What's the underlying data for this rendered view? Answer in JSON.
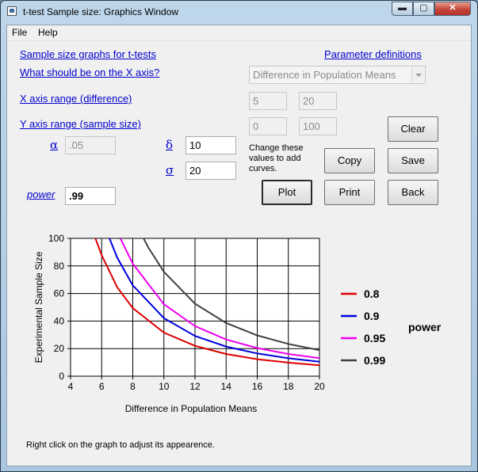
{
  "window": {
    "title": "t-test Sample size:  Graphics Window",
    "min_glyph": "▬",
    "max_glyph": "▢",
    "close_glyph": "✕"
  },
  "menu": {
    "items": [
      "File",
      "Help"
    ]
  },
  "links": {
    "sample_size_graphs": "Sample size graphs for t-tests",
    "x_axis_question": "What should be on the X axis?",
    "x_axis_range": "X axis range (difference)",
    "y_axis_range": "Y axis range (sample size)",
    "parameter_definitions": "Parameter definitions",
    "alpha": "α",
    "delta": "δ",
    "sigma": "σ",
    "power": "power"
  },
  "x_axis_select": {
    "selected": "Difference in Population Means"
  },
  "fields": {
    "x_min": "5",
    "x_max": "20",
    "y_min": "0",
    "y_max": "100",
    "alpha": ".05",
    "delta": "10",
    "sigma": "20",
    "power": ".99"
  },
  "note": "Change these values to add curves.",
  "buttons": {
    "clear": "Clear",
    "copy": "Copy",
    "save": "Save",
    "plot": "Plot",
    "print": "Print",
    "back": "Back"
  },
  "footer": "Right click on the graph to adjust its appearence.",
  "chart_data": {
    "type": "line",
    "xlabel": "Difference in Population Means",
    "ylabel": "Experimental Sample Size",
    "xlim": [
      4,
      20
    ],
    "ylim": [
      0,
      100
    ],
    "x_ticks": [
      4,
      6,
      8,
      10,
      12,
      14,
      16,
      18,
      20
    ],
    "y_ticks": [
      0,
      20,
      40,
      60,
      80,
      100
    ],
    "grid": true,
    "legend_title": "power",
    "legend_placement": "right",
    "series": [
      {
        "name": "0.8",
        "color": "#e00000",
        "x": [
          5.6,
          6,
          7,
          8,
          10,
          12,
          14,
          16,
          18,
          20
        ],
        "y": [
          100,
          87.7,
          64.5,
          49.4,
          31.6,
          22.0,
          16.1,
          12.3,
          9.8,
          7.9
        ]
      },
      {
        "name": "0.9",
        "color": "#0000dd",
        "x": [
          6.5,
          7,
          8,
          10,
          12,
          14,
          16,
          18,
          20
        ],
        "y": [
          100,
          86.0,
          65.9,
          42.1,
          29.2,
          21.5,
          16.5,
          13.0,
          10.5
        ]
      },
      {
        "name": "0.95",
        "color": "#ee00ee",
        "x": [
          7.2,
          8,
          10,
          12,
          14,
          16,
          18,
          20
        ],
        "y": [
          100,
          81.6,
          52.2,
          36.3,
          26.6,
          20.4,
          16.1,
          13.1
        ]
      },
      {
        "name": "0.99",
        "color": "#404040",
        "x": [
          8.7,
          9,
          10,
          12,
          14,
          16,
          18,
          20
        ],
        "y": [
          100,
          93.4,
          75.7,
          52.6,
          38.6,
          29.6,
          23.4,
          18.9
        ]
      }
    ]
  }
}
